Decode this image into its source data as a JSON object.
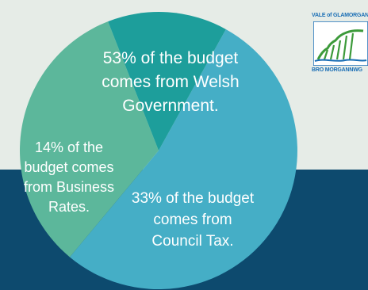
{
  "colors": {
    "background_top": "#e6ece7",
    "background_bottom": "#0d4a6e",
    "slice_welsh_government": "#45aec6",
    "slice_council_tax": "#5cb79b",
    "slice_business_rates": "#1d9e9b",
    "label_text": "#ffffff",
    "logo_text": "#1a6eb5",
    "logo_green": "#3c9a3a"
  },
  "logo": {
    "top_text": "VALE of GLAMORGAN",
    "bottom_text": "BRO MORGANNWG",
    "icon": "coastline-cliffs-icon"
  },
  "chart_data": {
    "type": "pie",
    "title": "",
    "slices": [
      {
        "key": "welsh_government",
        "value": 53,
        "label_lines": [
          "53% of the budget",
          "comes from Welsh",
          "Government."
        ]
      },
      {
        "key": "council_tax",
        "value": 33,
        "label_lines": [
          "33% of the budget",
          "comes from",
          "Council Tax."
        ]
      },
      {
        "key": "business_rates",
        "value": 14,
        "label_lines": [
          "14% of the",
          "budget comes",
          "from Business",
          "Rates."
        ]
      }
    ]
  }
}
